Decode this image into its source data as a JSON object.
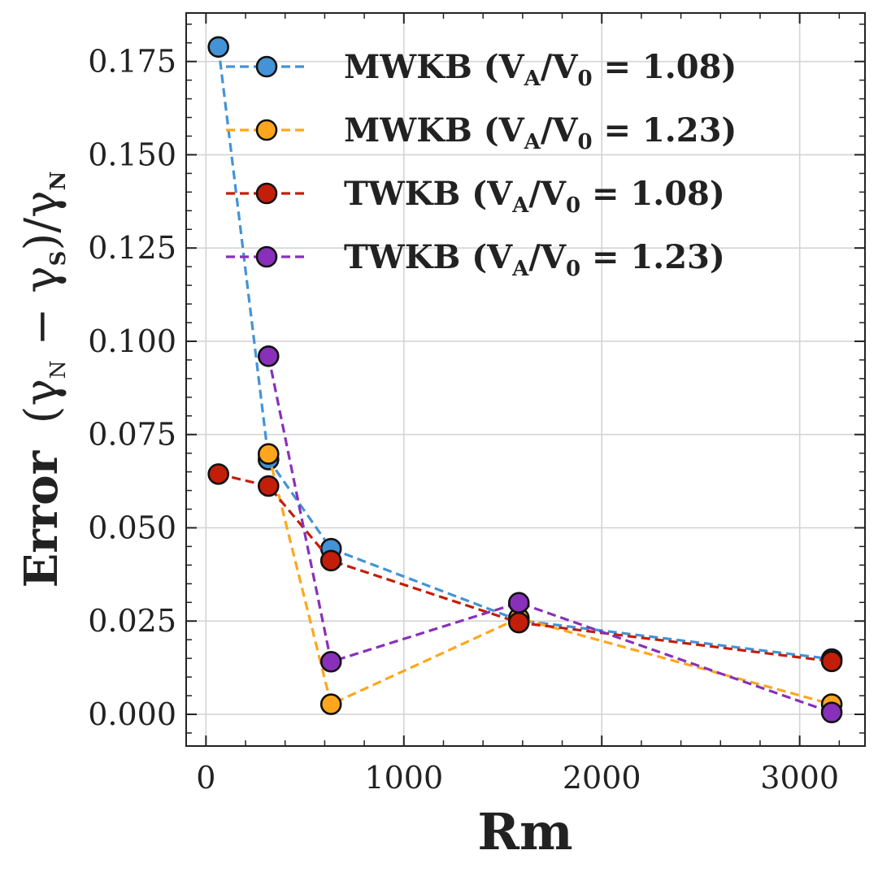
{
  "chart_data": {
    "type": "line",
    "xlabel": "Rm",
    "ylabel": {
      "main": "Error",
      "expr_open": "(γ",
      "sub1": "N",
      "minus": " − γ",
      "sub2": "S",
      "expr_close": ")/γ",
      "sub3": "N"
    },
    "xlim": [
      -100,
      3330
    ],
    "ylim": [
      -0.0085,
      0.188
    ],
    "xticks": [
      0,
      1000,
      2000,
      3000
    ],
    "xtick_labels": [
      "0",
      "1000",
      "2000",
      "3000"
    ],
    "yticks": [
      0.0,
      0.025,
      0.05,
      0.075,
      0.1,
      0.125,
      0.15,
      0.175
    ],
    "ytick_labels": [
      "0.000",
      "0.025",
      "0.050",
      "0.075",
      "0.100",
      "0.125",
      "0.150",
      "0.175"
    ],
    "grid": true,
    "legend_position": "top-right",
    "series": [
      {
        "name": "MWKB (VA/V0 = 1.08)",
        "legend_parts": {
          "method": "MWKB",
          "ratio": "1.08"
        },
        "color": "#4393D6",
        "x": [
          63,
          316,
          632,
          1581,
          3162
        ],
        "y": [
          0.1789,
          0.0683,
          0.0444,
          0.0252,
          0.0148
        ]
      },
      {
        "name": "MWKB (VA/V0 = 1.23)",
        "legend_parts": {
          "method": "MWKB",
          "ratio": "1.23"
        },
        "color": "#FFA61C",
        "x": [
          316,
          632,
          1581,
          3162
        ],
        "y": [
          0.0698,
          0.0027,
          0.0258,
          0.0027
        ]
      },
      {
        "name": "TWKB (VA/V0 = 1.08)",
        "legend_parts": {
          "method": "TWKB",
          "ratio": "1.08"
        },
        "color": "#C21E0A",
        "x": [
          63,
          316,
          632,
          1581,
          3162
        ],
        "y": [
          0.0644,
          0.0612,
          0.0412,
          0.0246,
          0.0142
        ]
      },
      {
        "name": "TWKB (VA/V0 = 1.23)",
        "legend_parts": {
          "method": "TWKB",
          "ratio": "1.23"
        },
        "color": "#8830BA",
        "x": [
          316,
          632,
          1581,
          3162
        ],
        "y": [
          0.096,
          0.0141,
          0.0299,
          0.0005
        ]
      }
    ]
  }
}
